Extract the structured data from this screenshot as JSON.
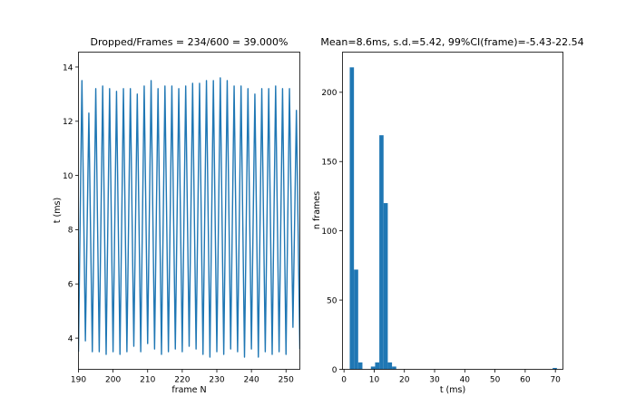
{
  "colors": {
    "series": "#1f77b4",
    "axes": "#000000",
    "background": "#ffffff"
  },
  "chart_data": [
    {
      "type": "line",
      "title": "Dropped/Frames = 234/600 = 39.000%",
      "xlabel": "frame N",
      "ylabel": "t (ms)",
      "xlim": [
        190,
        254
      ],
      "ylim": [
        2.85,
        14.55
      ],
      "xticks": [
        190,
        200,
        210,
        220,
        230,
        240,
        250
      ],
      "yticks": [
        4,
        6,
        8,
        10,
        12,
        14
      ],
      "grid": false,
      "series": [
        {
          "x": [
            190,
            191,
            192,
            193,
            194,
            195,
            196,
            197,
            198,
            199,
            200,
            201,
            202,
            203,
            204,
            205,
            206,
            207,
            208,
            209,
            210,
            211,
            212,
            213,
            214,
            215,
            216,
            217,
            218,
            219,
            220,
            221,
            222,
            223,
            224,
            225,
            226,
            227,
            228,
            229,
            230,
            231,
            232,
            233,
            234,
            235,
            236,
            237,
            238,
            239,
            240,
            241,
            242,
            243,
            244,
            245,
            246,
            247,
            248,
            249,
            250,
            251,
            252,
            253,
            254
          ],
          "y": [
            3.5,
            13.5,
            3.9,
            12.3,
            3.5,
            13.2,
            3.5,
            13.3,
            3.4,
            13.2,
            3.5,
            13.1,
            3.4,
            13.2,
            3.5,
            13.2,
            3.7,
            13.0,
            3.5,
            13.3,
            3.8,
            13.5,
            3.6,
            13.2,
            3.4,
            13.3,
            3.5,
            13.3,
            3.6,
            13.2,
            3.5,
            13.3,
            3.7,
            13.4,
            3.6,
            13.4,
            3.4,
            13.5,
            3.3,
            13.5,
            3.5,
            13.6,
            3.4,
            13.5,
            3.6,
            13.3,
            3.5,
            13.3,
            3.3,
            13.2,
            3.6,
            13.0,
            3.3,
            13.2,
            3.5,
            13.2,
            3.4,
            13.3,
            3.5,
            13.2,
            3.4,
            13.2,
            4.4,
            12.4,
            3.6
          ]
        }
      ]
    },
    {
      "type": "bar",
      "title": "Mean=8.6ms, s.d.=5.42, 99%CI(frame)=-5.43-22.54",
      "xlabel": "t (ms)",
      "ylabel": "n frames",
      "xlim": [
        -0.5,
        72.5
      ],
      "ylim": [
        0,
        229
      ],
      "xticks": [
        0,
        10,
        20,
        30,
        40,
        50,
        60,
        70
      ],
      "yticks": [
        0,
        50,
        100,
        150,
        200
      ],
      "grid": false,
      "bins": [
        {
          "from": 1.9,
          "to": 3.3,
          "count": 218
        },
        {
          "from": 3.3,
          "to": 4.7,
          "count": 72
        },
        {
          "from": 4.7,
          "to": 6.1,
          "count": 5
        },
        {
          "from": 8.9,
          "to": 10.3,
          "count": 2
        },
        {
          "from": 10.3,
          "to": 11.7,
          "count": 5
        },
        {
          "from": 11.7,
          "to": 13.1,
          "count": 169
        },
        {
          "from": 13.1,
          "to": 14.5,
          "count": 120
        },
        {
          "from": 14.5,
          "to": 15.9,
          "count": 5
        },
        {
          "from": 15.9,
          "to": 17.3,
          "count": 2
        },
        {
          "from": 69.1,
          "to": 70.5,
          "count": 1
        }
      ]
    }
  ]
}
